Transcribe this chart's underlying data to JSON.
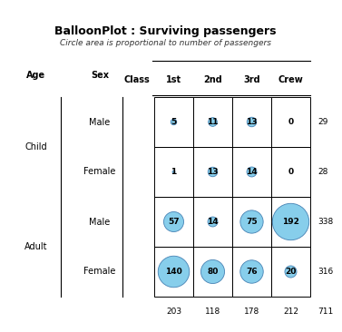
{
  "title": "BalloonPlot : Surviving passengers",
  "subtitle": "Circle area is proportional to number of passengers",
  "classes": [
    "1st",
    "2nd",
    "3rd",
    "Crew"
  ],
  "values": {
    "Child_Male": [
      5,
      11,
      13,
      0
    ],
    "Child_Female": [
      1,
      13,
      14,
      0
    ],
    "Adult_Male": [
      57,
      14,
      75,
      192
    ],
    "Adult_Female": [
      140,
      80,
      76,
      20
    ]
  },
  "row_totals": [
    29,
    28,
    338,
    316
  ],
  "col_totals": [
    203,
    118,
    178,
    212
  ],
  "grand_total": 711,
  "circle_color": "#87CEEB",
  "circle_edge_color": "#4682B4",
  "bg_color": "#ffffff",
  "text_color": "#000000",
  "age_labels": [
    "Child",
    "Adult"
  ],
  "sex_labels": [
    "Male",
    "Female",
    "Male",
    "Female"
  ]
}
